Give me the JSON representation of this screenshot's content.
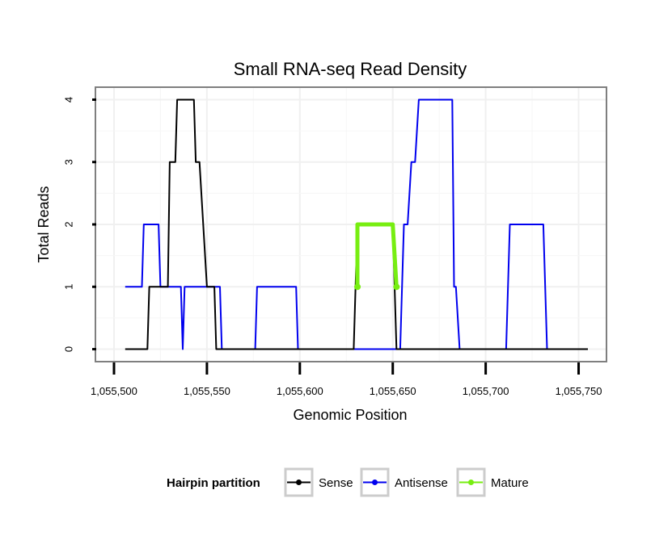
{
  "chart_data": {
    "type": "line",
    "title": "Small RNA-seq Read Density",
    "xlabel": "Genomic Position",
    "ylabel": "Total Reads",
    "xlim": [
      1055490,
      1055765
    ],
    "ylim": [
      -0.2,
      4.2
    ],
    "x_ticks": [
      1055500,
      1055550,
      1055600,
      1055650,
      1055700,
      1055750
    ],
    "x_tick_labels": [
      "1,055,500",
      "1,055,550",
      "1,055,600",
      "1,055,650",
      "1,055,700",
      "1,055,750"
    ],
    "y_ticks": [
      0,
      1,
      2,
      3,
      4
    ],
    "y_tick_labels": [
      "0",
      "1",
      "2",
      "3",
      "4"
    ],
    "grid": true,
    "legend": {
      "title": "Hairpin partition",
      "position": "bottom",
      "entries": [
        "Sense",
        "Antisense",
        "Mature"
      ]
    },
    "series": [
      {
        "name": "Antisense",
        "color": "#0000ee",
        "points": [
          [
            1055506,
            1
          ],
          [
            1055515,
            1
          ],
          [
            1055516,
            2
          ],
          [
            1055524,
            2
          ],
          [
            1055525,
            1
          ],
          [
            1055536,
            1
          ],
          [
            1055537,
            0
          ],
          [
            1055538,
            1
          ],
          [
            1055549,
            1
          ],
          [
            1055550,
            1
          ],
          [
            1055557,
            1
          ],
          [
            1055558,
            0
          ],
          [
            1055576,
            0
          ],
          [
            1055577,
            1
          ],
          [
            1055598,
            1
          ],
          [
            1055599,
            0
          ],
          [
            1055654,
            0
          ],
          [
            1055656,
            2
          ],
          [
            1055658,
            2
          ],
          [
            1055660,
            3
          ],
          [
            1055662,
            3
          ],
          [
            1055664,
            4
          ],
          [
            1055682,
            4
          ],
          [
            1055683,
            1
          ],
          [
            1055684,
            1
          ],
          [
            1055686,
            0
          ],
          [
            1055711,
            0
          ],
          [
            1055713,
            2
          ],
          [
            1055731,
            2
          ],
          [
            1055733,
            0
          ],
          [
            1055755,
            0
          ]
        ]
      },
      {
        "name": "Sense",
        "color": "#000000",
        "points": [
          [
            1055506,
            0
          ],
          [
            1055518,
            0
          ],
          [
            1055519,
            1
          ],
          [
            1055529,
            1
          ],
          [
            1055530,
            3
          ],
          [
            1055533,
            3
          ],
          [
            1055534,
            4
          ],
          [
            1055543,
            4
          ],
          [
            1055544,
            3
          ],
          [
            1055546,
            3
          ],
          [
            1055550,
            1
          ],
          [
            1055554,
            1
          ],
          [
            1055555,
            0
          ],
          [
            1055629,
            0
          ],
          [
            1055631,
            2
          ],
          [
            1055650,
            2
          ],
          [
            1055652,
            0
          ],
          [
            1055755,
            0
          ]
        ]
      },
      {
        "name": "Mature",
        "color": "#77ee11",
        "points": [
          [
            1055631,
            1
          ],
          [
            1055631,
            2
          ],
          [
            1055650,
            2
          ],
          [
            1055652,
            1
          ]
        ]
      }
    ]
  }
}
